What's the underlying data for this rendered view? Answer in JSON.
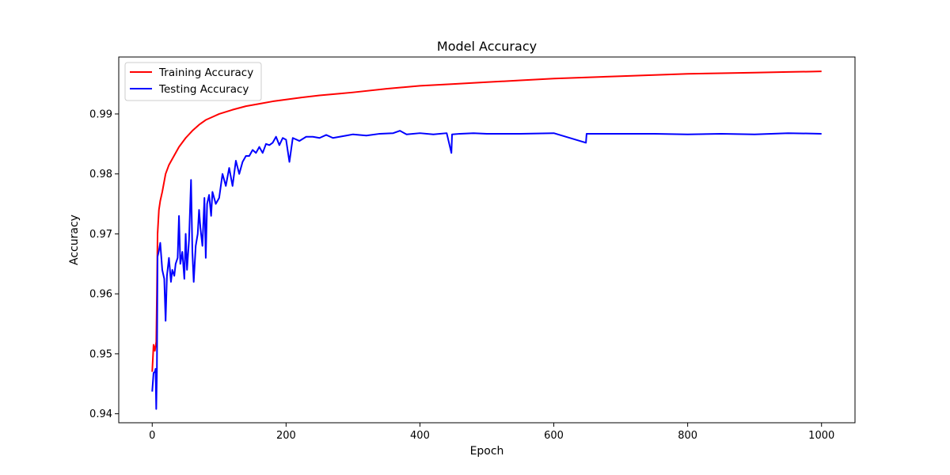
{
  "chart_data": {
    "type": "line",
    "title": "Model Accuracy",
    "xlabel": "Epoch",
    "ylabel": "Accuracy",
    "xlim": [
      -50,
      1050
    ],
    "ylim": [
      0.9385,
      0.9995
    ],
    "xticks": [
      0,
      200,
      400,
      600,
      800,
      1000
    ],
    "yticks": [
      0.94,
      0.95,
      0.96,
      0.97,
      0.98,
      0.99
    ],
    "ytick_labels": [
      "0.94",
      "0.95",
      "0.96",
      "0.97",
      "0.98",
      "0.99"
    ],
    "grid": false,
    "legend_position": "upper-left",
    "series": [
      {
        "name": "Training Accuracy",
        "color": "#ff0000",
        "x": [
          0,
          2,
          4,
          6,
          7,
          8,
          10,
          12,
          15,
          20,
          25,
          30,
          40,
          50,
          60,
          70,
          80,
          90,
          100,
          120,
          140,
          160,
          180,
          200,
          220,
          250,
          280,
          300,
          350,
          400,
          450,
          500,
          550,
          600,
          650,
          700,
          750,
          800,
          850,
          900,
          950,
          1000
        ],
        "y": [
          0.947,
          0.9515,
          0.9505,
          0.952,
          0.96,
          0.97,
          0.974,
          0.9755,
          0.977,
          0.98,
          0.9815,
          0.9825,
          0.9845,
          0.986,
          0.9872,
          0.9882,
          0.989,
          0.9895,
          0.99,
          0.9907,
          0.9913,
          0.9917,
          0.9921,
          0.9924,
          0.9927,
          0.9931,
          0.9934,
          0.9936,
          0.9942,
          0.9947,
          0.995,
          0.9953,
          0.9956,
          0.9959,
          0.9961,
          0.9963,
          0.9965,
          0.9967,
          0.9968,
          0.9969,
          0.997,
          0.9971
        ]
      },
      {
        "name": "Testing Accuracy",
        "color": "#0000ff",
        "x": [
          0,
          2,
          4,
          5,
          6,
          7,
          8,
          10,
          12,
          15,
          18,
          20,
          22,
          25,
          28,
          30,
          33,
          35,
          38,
          40,
          42,
          45,
          48,
          50,
          52,
          55,
          58,
          60,
          62,
          65,
          68,
          70,
          72,
          75,
          78,
          80,
          82,
          85,
          88,
          90,
          95,
          100,
          105,
          110,
          115,
          120,
          125,
          130,
          135,
          140,
          145,
          150,
          155,
          160,
          165,
          170,
          175,
          180,
          185,
          190,
          195,
          200,
          205,
          210,
          220,
          230,
          240,
          250,
          260,
          270,
          280,
          290,
          300,
          320,
          340,
          360,
          370,
          380,
          400,
          420,
          440,
          447,
          448,
          460,
          480,
          500,
          550,
          600,
          648,
          649,
          700,
          750,
          800,
          850,
          900,
          950,
          1000
        ],
        "y": [
          0.9437,
          0.9468,
          0.947,
          0.9475,
          0.9408,
          0.947,
          0.9662,
          0.9672,
          0.9685,
          0.964,
          0.9625,
          0.9555,
          0.963,
          0.966,
          0.962,
          0.964,
          0.963,
          0.965,
          0.966,
          0.973,
          0.965,
          0.967,
          0.9625,
          0.97,
          0.964,
          0.969,
          0.979,
          0.967,
          0.962,
          0.968,
          0.97,
          0.974,
          0.971,
          0.968,
          0.976,
          0.966,
          0.975,
          0.9765,
          0.973,
          0.977,
          0.975,
          0.976,
          0.98,
          0.978,
          0.981,
          0.978,
          0.9822,
          0.98,
          0.982,
          0.983,
          0.983,
          0.984,
          0.9835,
          0.9845,
          0.9835,
          0.985,
          0.9848,
          0.9852,
          0.9862,
          0.9848,
          0.986,
          0.9857,
          0.982,
          0.986,
          0.9855,
          0.9862,
          0.9862,
          0.986,
          0.9865,
          0.986,
          0.9862,
          0.9864,
          0.9866,
          0.9864,
          0.9867,
          0.9868,
          0.9872,
          0.9866,
          0.9868,
          0.9866,
          0.9868,
          0.9835,
          0.9866,
          0.9867,
          0.9868,
          0.9867,
          0.9867,
          0.9868,
          0.9852,
          0.9867,
          0.9867,
          0.9867,
          0.9866,
          0.9867,
          0.9866,
          0.9868,
          0.9867
        ]
      }
    ]
  }
}
